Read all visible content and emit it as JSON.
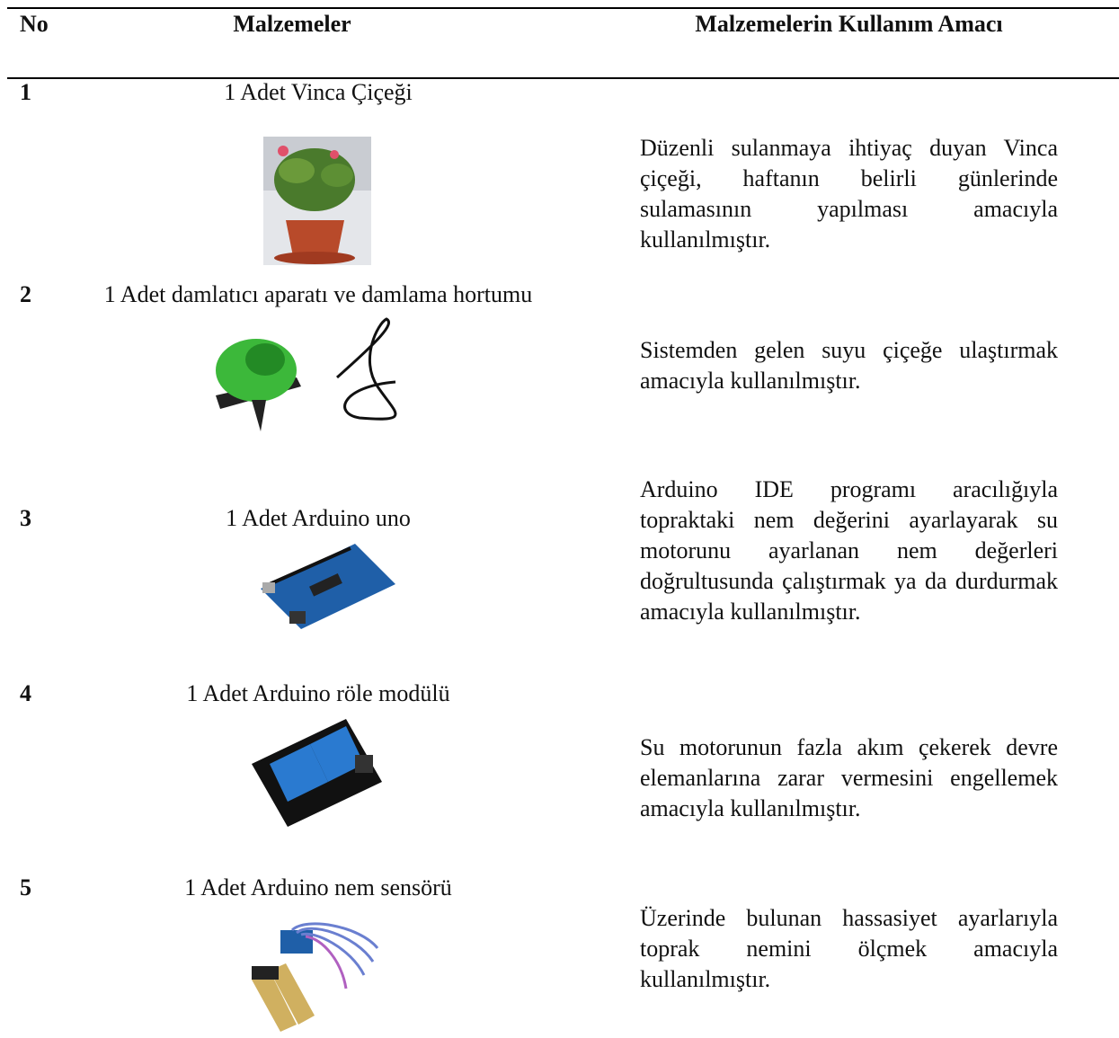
{
  "table": {
    "headers": [
      "No",
      "Malzemeler",
      "Malzemelerin Kullanım Amacı"
    ],
    "rows": [
      [
        "1",
        "1 Adet Vinca Çiçeği",
        "Düzenli sulanmaya ihtiyaç duyan Vinca çiçeği, haftanın belirli günlerinde sulamasının yapılması amacıyla kullanılmıştır."
      ],
      [
        "2",
        "1 Adet damlatıcı aparatı ve damlama hortumu",
        "Sistemden gelen suyu çiçeğe ulaştırmak amacıyla kullanılmıştır."
      ],
      [
        "3",
        "1 Adet Arduino uno",
        "Arduino IDE programı aracılığıyla topraktaki nem değerini ayarlayarak su motorunu ayarlanan nem değerleri doğrultusunda çalıştırmak ya da durdurmak amacıyla kullanılmıştır."
      ],
      [
        "4",
        "1 Adet Arduino röle modülü",
        "Su motorunun fazla akım çekerek devre elemanlarına zarar vermesini engellemek amacıyla kullanılmıştır."
      ],
      [
        "5",
        "1 Adet Arduino nem sensörü",
        "Üzerinde bulunan hassasiyet ayarlarıyla toprak nemini ölçmek amacıyla kullanılmıştır."
      ]
    ]
  }
}
